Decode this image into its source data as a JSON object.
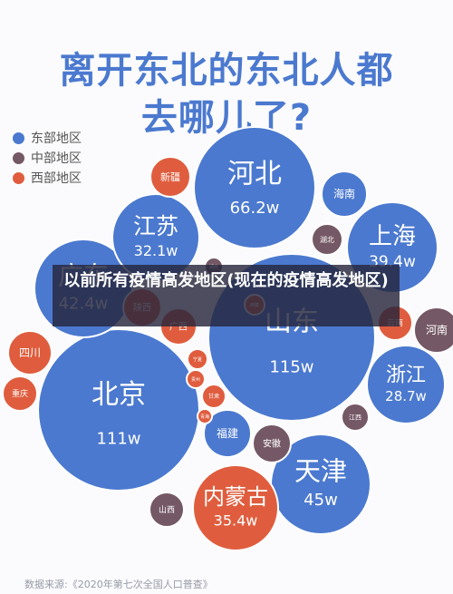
{
  "title_lines": [
    "离开东北的东北人都",
    "去哪儿了?"
  ],
  "colors": {
    "east": "#4b79cf",
    "central": "#755865",
    "west": "#df5d3e",
    "title": "#4b79cf"
  },
  "legend": [
    {
      "label": "东部地区",
      "region": "east"
    },
    {
      "label": "中部地区",
      "region": "central"
    },
    {
      "label": "西部地区",
      "region": "west"
    }
  ],
  "caption": "以前所有疫情高发地区(现在的疫情高发地区)",
  "source": "数据来源:《2020年第七次全国人口普查》",
  "chart_data": {
    "type": "bubble",
    "title": "离开东北的东北人都去哪儿了?",
    "unit": "w",
    "legend_placement": "top-left",
    "series": [
      {
        "name": "东部地区",
        "region": "east"
      },
      {
        "name": "中部地区",
        "region": "central"
      },
      {
        "name": "西部地区",
        "region": "west"
      }
    ],
    "bubbles": [
      {
        "name": "北京",
        "value": 111,
        "label": "111w",
        "region": "east"
      },
      {
        "name": "山东",
        "value": 115,
        "label": "115w",
        "region": "east"
      },
      {
        "name": "河北",
        "value": 66.2,
        "label": "66.2w",
        "region": "east"
      },
      {
        "name": "天津",
        "value": 45,
        "label": "45w",
        "region": "east"
      },
      {
        "name": "广东",
        "value": 42.4,
        "label": "42.4w",
        "region": "east"
      },
      {
        "name": "上海",
        "value": 39.4,
        "label": "39.4w",
        "region": "east"
      },
      {
        "name": "内蒙古",
        "value": 35.4,
        "label": "35.4w",
        "region": "west"
      },
      {
        "name": "江苏",
        "value": 32.1,
        "label": "32.1w",
        "region": "east"
      },
      {
        "name": "浙江",
        "value": 28.7,
        "label": "28.7w",
        "region": "east"
      },
      {
        "name": "海南",
        "label": "",
        "region": "east"
      },
      {
        "name": "福建",
        "label": "",
        "region": "east"
      },
      {
        "name": "湖北",
        "label": "",
        "region": "central"
      },
      {
        "name": "河南",
        "label": "",
        "region": "central"
      },
      {
        "name": "安徽",
        "label": "",
        "region": "central"
      },
      {
        "name": "江西",
        "label": "",
        "region": "central"
      },
      {
        "name": "山西",
        "label": "",
        "region": "central"
      },
      {
        "name": "湖南",
        "label": "",
        "region": "central"
      },
      {
        "name": "新疆",
        "label": "",
        "region": "west"
      },
      {
        "name": "四川",
        "label": "",
        "region": "west"
      },
      {
        "name": "重庆",
        "label": "",
        "region": "west"
      },
      {
        "name": "云南",
        "label": "",
        "region": "west"
      },
      {
        "name": "陕西",
        "label": "",
        "region": "west"
      },
      {
        "name": "广西",
        "label": "",
        "region": "west"
      },
      {
        "name": "宁夏",
        "label": "",
        "region": "west"
      },
      {
        "name": "甘肃",
        "label": "",
        "region": "west"
      },
      {
        "name": "贵州",
        "label": "",
        "region": "west"
      },
      {
        "name": "青海",
        "label": "",
        "region": "west"
      },
      {
        "name": "西藏",
        "label": "",
        "region": "west"
      }
    ]
  }
}
